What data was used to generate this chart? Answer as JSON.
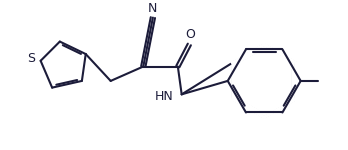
{
  "line_color": "#1c1c3a",
  "bg_color": "#ffffff",
  "lw": 1.5,
  "fs": 9,
  "figsize": [
    3.48,
    1.5
  ],
  "dpi": 100,
  "xlim": [
    0,
    3.48
  ],
  "ylim": [
    0,
    1.5
  ]
}
